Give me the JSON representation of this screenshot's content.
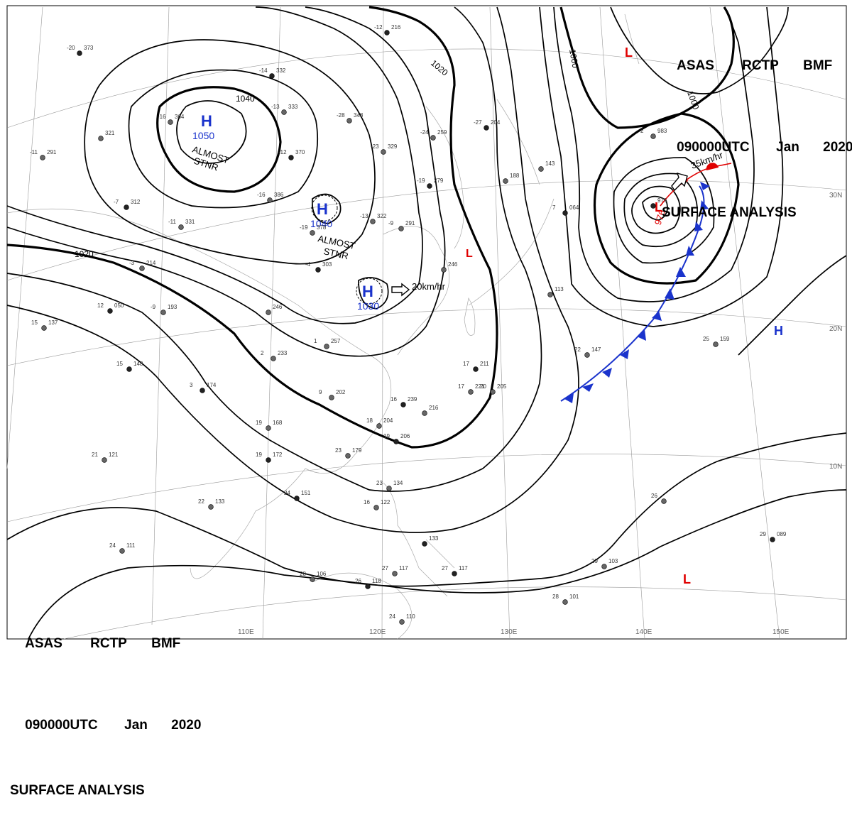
{
  "header": {
    "line1": [
      "ASAS",
      "RCTP",
      "BMF"
    ],
    "line2": [
      "090000UTC",
      "Jan",
      "2020"
    ],
    "line3": "SURFACE ANALYSIS"
  },
  "longitude_labels": [
    "110E",
    "120E",
    "130E",
    "140E",
    "150E"
  ],
  "latitude_labels": [
    "30N",
    "20N",
    "10N"
  ],
  "isobar_labels": [
    "1040",
    "1020",
    "1020",
    "1000",
    "1000",
    "1020"
  ],
  "pressure_systems": [
    {
      "type": "H",
      "value": "1050",
      "note": "ALMOST STNR"
    },
    {
      "type": "H",
      "value": "1040",
      "note": "ALMOST STNR"
    },
    {
      "type": "H",
      "value": "1030",
      "motion": "20km/hr"
    },
    {
      "type": "L",
      "value": "976",
      "motion": "35km/hr"
    },
    {
      "type": "L"
    },
    {
      "type": "L"
    },
    {
      "type": "L"
    },
    {
      "type": "H"
    }
  ],
  "colors": {
    "high": "#1a33cc",
    "low": "#e00000",
    "front_cold": "#1a33cc",
    "front_warm": "#e00000"
  },
  "stations": [
    {
      "p": "373",
      "t": "-20"
    },
    {
      "p": "321",
      "t": ""
    },
    {
      "p": "291",
      "t": "-11"
    },
    {
      "p": "312",
      "t": "-7"
    },
    {
      "p": "331",
      "t": "-11"
    },
    {
      "p": "214",
      "t": "-3"
    },
    {
      "p": "050",
      "t": "12"
    },
    {
      "p": "193",
      "t": "-9"
    },
    {
      "p": "137",
      "t": "15"
    },
    {
      "p": "148",
      "t": "15"
    },
    {
      "p": "246",
      "t": ""
    },
    {
      "p": "233",
      "t": "2"
    },
    {
      "p": "174",
      "t": "3"
    },
    {
      "p": "202",
      "t": "9"
    },
    {
      "p": "257",
      "t": "1"
    },
    {
      "p": "303",
      "t": "-4"
    },
    {
      "p": "378",
      "t": "-19"
    },
    {
      "p": "322",
      "t": "-13"
    },
    {
      "p": "370",
      "t": "-12"
    },
    {
      "p": "333",
      "t": "-13"
    },
    {
      "p": "348",
      "t": "-28"
    },
    {
      "p": "332",
      "t": "-14"
    },
    {
      "p": "386",
      "t": "-16"
    },
    {
      "p": "364",
      "t": "-16"
    },
    {
      "p": "216",
      "t": "-12"
    },
    {
      "p": "329",
      "t": "-23"
    },
    {
      "p": "259",
      "t": "-24"
    },
    {
      "p": "279",
      "t": "-19"
    },
    {
      "p": "291",
      "t": "-9"
    },
    {
      "p": "246",
      "t": ""
    },
    {
      "p": "204",
      "t": "-27"
    },
    {
      "p": "188",
      "t": ""
    },
    {
      "p": "143",
      "t": ""
    },
    {
      "p": "064",
      "t": "7"
    },
    {
      "p": "113",
      "t": ""
    },
    {
      "p": "983",
      "t": "2"
    },
    {
      "p": "976",
      "t": ""
    },
    {
      "p": "147",
      "t": "22"
    },
    {
      "p": "159",
      "t": "25"
    },
    {
      "p": "211",
      "t": "17"
    },
    {
      "p": "221",
      "t": "17"
    },
    {
      "p": "205",
      "t": "20"
    },
    {
      "p": "239",
      "t": "16"
    },
    {
      "p": "216",
      "t": ""
    },
    {
      "p": "204",
      "t": "18"
    },
    {
      "p": "206",
      "t": "19"
    },
    {
      "p": "179",
      "t": "23"
    },
    {
      "p": "168",
      "t": "19"
    },
    {
      "p": "172",
      "t": "19"
    },
    {
      "p": "121",
      "t": "21"
    },
    {
      "p": "133",
      "t": "22"
    },
    {
      "p": "151",
      "t": "24"
    },
    {
      "p": "134",
      "t": "23"
    },
    {
      "p": "122",
      "t": "16"
    },
    {
      "p": "133",
      "t": ""
    },
    {
      "p": "117",
      "t": "27"
    },
    {
      "p": "106",
      "t": "28"
    },
    {
      "p": "118",
      "t": "26"
    },
    {
      "p": "110",
      "t": "24"
    },
    {
      "p": "111",
      "t": "24"
    },
    {
      "p": "117",
      "t": "27"
    },
    {
      "p": "101",
      "t": "28"
    },
    {
      "p": "103",
      "t": "29"
    },
    {
      "p": "089",
      "t": "29"
    },
    {
      "p": "",
      "t": "26"
    }
  ]
}
